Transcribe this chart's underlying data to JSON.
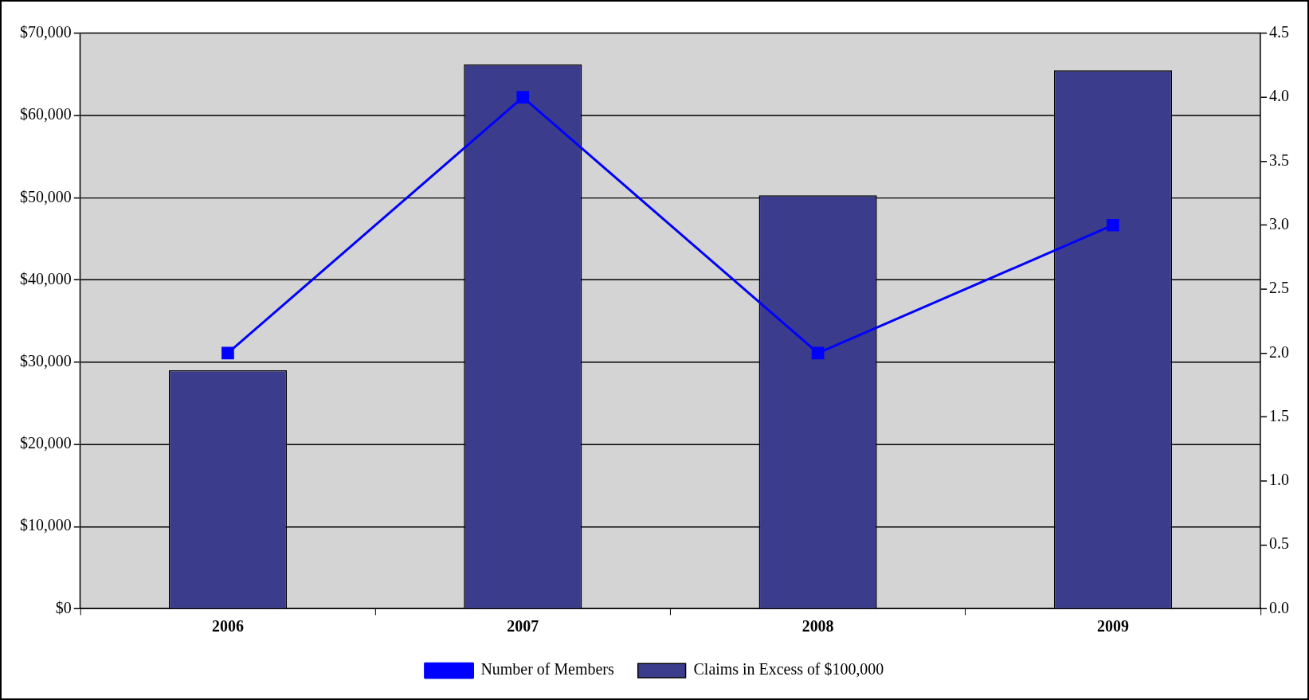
{
  "chart_data": {
    "type": "bar",
    "categories": [
      "2006",
      "2007",
      "2008",
      "2009"
    ],
    "series": [
      {
        "name": "Claims in Excess of $100,000",
        "color": "#3c3c8c",
        "values": [
          29000,
          66200,
          50300,
          65500
        ]
      },
      {
        "name": "Number of Members",
        "type": "line",
        "axis": "y2",
        "color": "#0000ff",
        "values": [
          2,
          4,
          2,
          3
        ]
      }
    ],
    "ylim": [
      0,
      70000
    ],
    "yticks": [
      {
        "value": 0,
        "label": "$0"
      },
      {
        "value": 10000,
        "label": "$10,000"
      },
      {
        "value": 20000,
        "label": "$20,000"
      },
      {
        "value": 30000,
        "label": "$30,000"
      },
      {
        "value": 40000,
        "label": "$40,000"
      },
      {
        "value": 50000,
        "label": "$50,000"
      },
      {
        "value": 60000,
        "label": "$60,000"
      },
      {
        "value": 70000,
        "label": "$70,000"
      }
    ],
    "y2lim": [
      0,
      4.5
    ],
    "y2ticks": [
      {
        "value": 0,
        "label": "0.0"
      },
      {
        "value": 0.5,
        "label": "0.5"
      },
      {
        "value": 1,
        "label": "1.0"
      },
      {
        "value": 1.5,
        "label": "1.5"
      },
      {
        "value": 2,
        "label": "2.0"
      },
      {
        "value": 2.5,
        "label": "2.5"
      },
      {
        "value": 3,
        "label": "3.0"
      },
      {
        "value": 3.5,
        "label": "3.5"
      },
      {
        "value": 4,
        "label": "4.0"
      },
      {
        "value": 4.5,
        "label": "4.5"
      }
    ],
    "grid": "y",
    "legend": "bottom",
    "marker": "square",
    "line_style": "solid"
  }
}
